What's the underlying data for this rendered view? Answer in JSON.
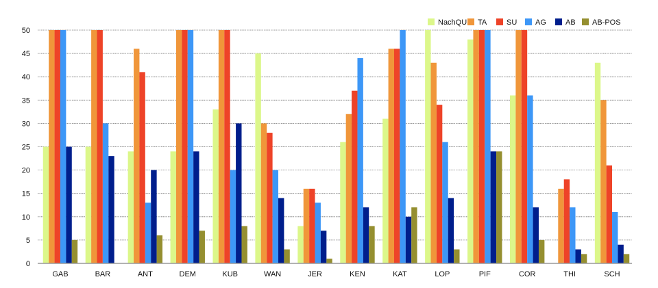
{
  "chart_data": {
    "type": "bar",
    "title": "",
    "xlabel": "",
    "ylabel": "",
    "ylim": [
      0,
      50
    ],
    "yticks": [
      0,
      5,
      10,
      15,
      20,
      25,
      30,
      35,
      40,
      45,
      50
    ],
    "grid": true,
    "legend_position": "top-right",
    "categories": [
      "GAB",
      "BAR",
      "ANT",
      "DEM",
      "KUB",
      "WAN",
      "JER",
      "KEN",
      "KAT",
      "LOP",
      "PIF",
      "COR",
      "THI",
      "SCH"
    ],
    "series": [
      {
        "name": "NachQU",
        "color": "#dcf78a",
        "values": [
          25,
          25,
          24,
          24,
          33,
          45,
          8,
          26,
          31,
          50,
          48,
          36,
          0,
          43
        ]
      },
      {
        "name": "TA",
        "color": "#f0963a",
        "values": [
          50,
          50,
          46,
          50,
          50,
          30,
          16,
          32,
          46,
          43,
          50,
          50,
          16,
          35
        ]
      },
      {
        "name": "SU",
        "color": "#ee4328",
        "values": [
          50,
          50,
          41,
          50,
          50,
          28,
          16,
          37,
          46,
          34,
          50,
          50,
          18,
          21
        ]
      },
      {
        "name": "AG",
        "color": "#3d97f7",
        "values": [
          50,
          30,
          13,
          50,
          20,
          20,
          13,
          44,
          50,
          26,
          50,
          36,
          12,
          11
        ]
      },
      {
        "name": "AB",
        "color": "#001e8c",
        "values": [
          25,
          23,
          20,
          24,
          30,
          14,
          7,
          12,
          10,
          14,
          24,
          12,
          3,
          4
        ]
      },
      {
        "name": "AB-POS",
        "color": "#958f30",
        "values": [
          5,
          0,
          6,
          7,
          8,
          3,
          1,
          8,
          12,
          3,
          24,
          5,
          2,
          2
        ]
      }
    ]
  }
}
